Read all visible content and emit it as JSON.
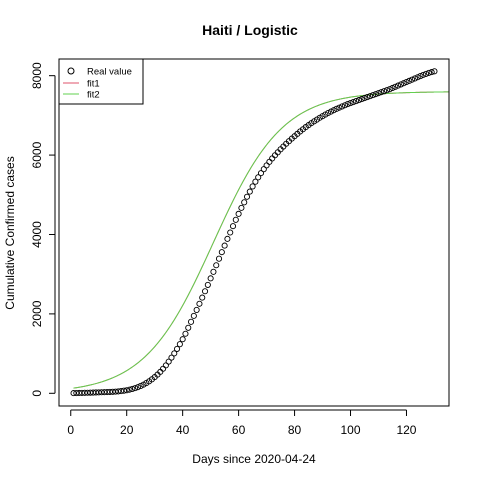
{
  "chart_data": {
    "type": "scatter",
    "title": "Haiti / Logistic",
    "xlabel": "Days since 2020-04-24",
    "ylabel": "Cumulative Confirmed cases",
    "xlim": [
      -4.2,
      135.2
    ],
    "ylim": [
      -320,
      8420
    ],
    "x_ticks": [
      0,
      20,
      40,
      60,
      80,
      100,
      120
    ],
    "x_tick_labels": [
      "0",
      "20",
      "40",
      "60",
      "80",
      "100",
      "120"
    ],
    "y_ticks": [
      0,
      2000,
      4000,
      6000,
      8000
    ],
    "y_tick_labels": [
      "0",
      "2000",
      "4000",
      "6000",
      "8000"
    ],
    "grid": false,
    "legend": {
      "position": "top-left",
      "entries": [
        {
          "label": "Real value",
          "symbol": "circle",
          "color": "#000000"
        },
        {
          "label": "fit1",
          "symbol": "line",
          "color": "#DF536B"
        },
        {
          "label": "fit2",
          "symbol": "line",
          "color": "#61D04F"
        }
      ]
    },
    "series": [
      {
        "name": "Real value",
        "kind": "points",
        "color": "#000000",
        "x": [
          1,
          2,
          3,
          4,
          5,
          6,
          7,
          8,
          9,
          10,
          11,
          12,
          13,
          14,
          15,
          16,
          17,
          18,
          19,
          20,
          21,
          22,
          23,
          24,
          25,
          26,
          27,
          28,
          29,
          30,
          31,
          32,
          33,
          34,
          35,
          36,
          37,
          38,
          39,
          40,
          41,
          42,
          43,
          44,
          45,
          46,
          47,
          48,
          49,
          50,
          51,
          52,
          53,
          54,
          55,
          56,
          57,
          58,
          59,
          60,
          61,
          62,
          63,
          64,
          65,
          66,
          67,
          68,
          69,
          70,
          71,
          72,
          73,
          74,
          75,
          76,
          77,
          78,
          79,
          80,
          81,
          82,
          83,
          84,
          85,
          86,
          87,
          88,
          89,
          90,
          91,
          92,
          93,
          94,
          95,
          96,
          97,
          98,
          99,
          100,
          101,
          102,
          103,
          104,
          105,
          106,
          107,
          108,
          109,
          110,
          111,
          112,
          113,
          114,
          115,
          116,
          117,
          118,
          119,
          120,
          121,
          122,
          123,
          124,
          125,
          126,
          127,
          128,
          129,
          130
        ],
        "y": [
          5,
          6,
          8,
          10,
          12,
          14,
          16,
          18,
          21,
          23,
          26,
          29,
          32,
          35,
          38,
          42,
          48,
          56,
          65,
          77,
          92,
          110,
          130,
          155,
          185,
          218,
          258,
          302,
          352,
          408,
          471,
          540,
          618,
          703,
          797,
          898,
          1005,
          1118,
          1237,
          1362,
          1500,
          1650,
          1800,
          1950,
          2100,
          2255,
          2410,
          2570,
          2730,
          2895,
          3060,
          3225,
          3390,
          3555,
          3720,
          3890,
          4050,
          4210,
          4370,
          4520,
          4670,
          4810,
          4950,
          5080,
          5210,
          5330,
          5440,
          5545,
          5645,
          5740,
          5830,
          5915,
          5995,
          6070,
          6145,
          6215,
          6285,
          6350,
          6415,
          6475,
          6535,
          6595,
          6650,
          6705,
          6755,
          6805,
          6850,
          6895,
          6940,
          6980,
          7020,
          7060,
          7095,
          7130,
          7165,
          7195,
          7225,
          7255,
          7285,
          7310,
          7335,
          7360,
          7385,
          7410,
          7435,
          7460,
          7485,
          7510,
          7535,
          7560,
          7585,
          7610,
          7635,
          7660,
          7690,
          7720,
          7750,
          7780,
          7810,
          7840,
          7870,
          7900,
          7930,
          7960,
          7990,
          8020,
          8045,
          8070,
          8090,
          8110
        ]
      },
      {
        "name": "fit1",
        "kind": "line",
        "color": "#DF536B",
        "model": "logistic",
        "params": {
          "K": 7600,
          "r": 0.081,
          "t0": 51
        }
      },
      {
        "name": "fit2",
        "kind": "line",
        "color": "#61D04F",
        "model": "logistic",
        "params": {
          "K": 7600,
          "r": 0.081,
          "t0": 51
        }
      }
    ]
  }
}
